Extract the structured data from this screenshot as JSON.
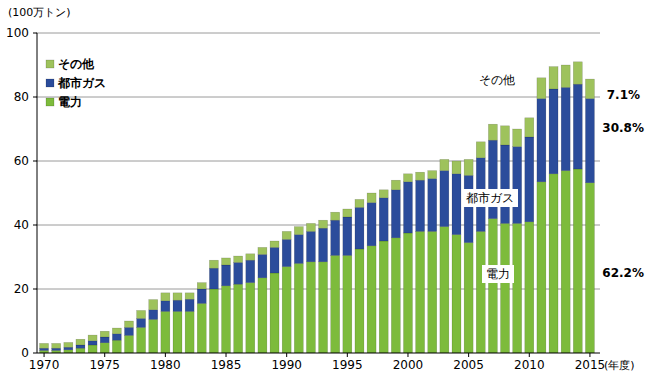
{
  "chart_data": {
    "type": "bar",
    "stacked": true,
    "grid": true,
    "legend": "upper left",
    "y_label": "(100万トン)",
    "x_label": "(年度)",
    "categories": [
      "1970",
      null,
      null,
      null,
      null,
      "1975",
      null,
      null,
      null,
      null,
      "1980",
      null,
      null,
      null,
      null,
      "1985",
      null,
      null,
      null,
      null,
      "1990",
      null,
      null,
      null,
      null,
      "1995",
      null,
      null,
      null,
      null,
      "2000",
      null,
      null,
      null,
      null,
      "2005",
      null,
      null,
      null,
      null,
      "2010",
      null,
      null,
      null,
      null,
      "2015"
    ],
    "series": [
      {
        "name": "電力",
        "color": "#7dbb3c",
        "values": [
          0.8,
          0.8,
          1.0,
          1.5,
          2.5,
          3.2,
          4.0,
          5.5,
          8.0,
          10.5,
          13.0,
          13.0,
          13.0,
          15.5,
          20.0,
          21.0,
          21.5,
          22.0,
          23.5,
          25.0,
          27.0,
          28.0,
          28.5,
          28.5,
          30.5,
          30.5,
          32.5,
          33.5,
          35.0,
          36.0,
          37.5,
          38.0,
          38.0,
          39.5,
          37.0,
          34.5,
          38.0,
          42.0,
          40.5,
          40.5,
          41.0,
          53.5,
          56.0,
          57.0,
          57.5,
          53.2
        ]
      },
      {
        "name": "都市ガス",
        "color": "#2b4c9b",
        "values": [
          0.7,
          0.7,
          0.8,
          1.0,
          1.3,
          1.8,
          2.0,
          2.5,
          2.8,
          3.0,
          3.3,
          3.5,
          3.8,
          4.5,
          6.5,
          6.5,
          6.8,
          7.0,
          7.3,
          8.0,
          8.5,
          9.0,
          9.5,
          10.5,
          11.0,
          12.0,
          13.0,
          13.5,
          13.5,
          15.0,
          16.0,
          16.0,
          16.5,
          17.5,
          19.0,
          21.0,
          23.0,
          24.5,
          24.5,
          24.0,
          26.5,
          26.0,
          26.5,
          26.0,
          26.5,
          26.3
        ]
      },
      {
        "name": "その他",
        "color": "#9ec25c",
        "values": [
          1.5,
          1.5,
          1.5,
          1.8,
          1.8,
          1.8,
          1.8,
          2.0,
          2.5,
          3.2,
          2.5,
          2.3,
          2.0,
          2.0,
          2.5,
          2.2,
          2.0,
          2.0,
          2.2,
          2.0,
          2.5,
          2.5,
          2.5,
          2.5,
          2.5,
          2.5,
          2.5,
          3.0,
          2.5,
          3.0,
          2.5,
          2.5,
          2.5,
          3.5,
          4.0,
          5.0,
          5.0,
          5.0,
          6.0,
          5.5,
          6.0,
          6.5,
          7.0,
          7.0,
          7.0,
          6.1
        ]
      }
    ],
    "ylim": [
      0,
      100
    ],
    "yticks": [
      0,
      20,
      40,
      60,
      80,
      100
    ],
    "annotations": [
      {
        "text": "その他"
      },
      {
        "text": "都市ガス"
      },
      {
        "text": "電力"
      },
      {
        "text": "7.1%"
      },
      {
        "text": "30.8%"
      },
      {
        "text": "62.2%"
      }
    ]
  }
}
